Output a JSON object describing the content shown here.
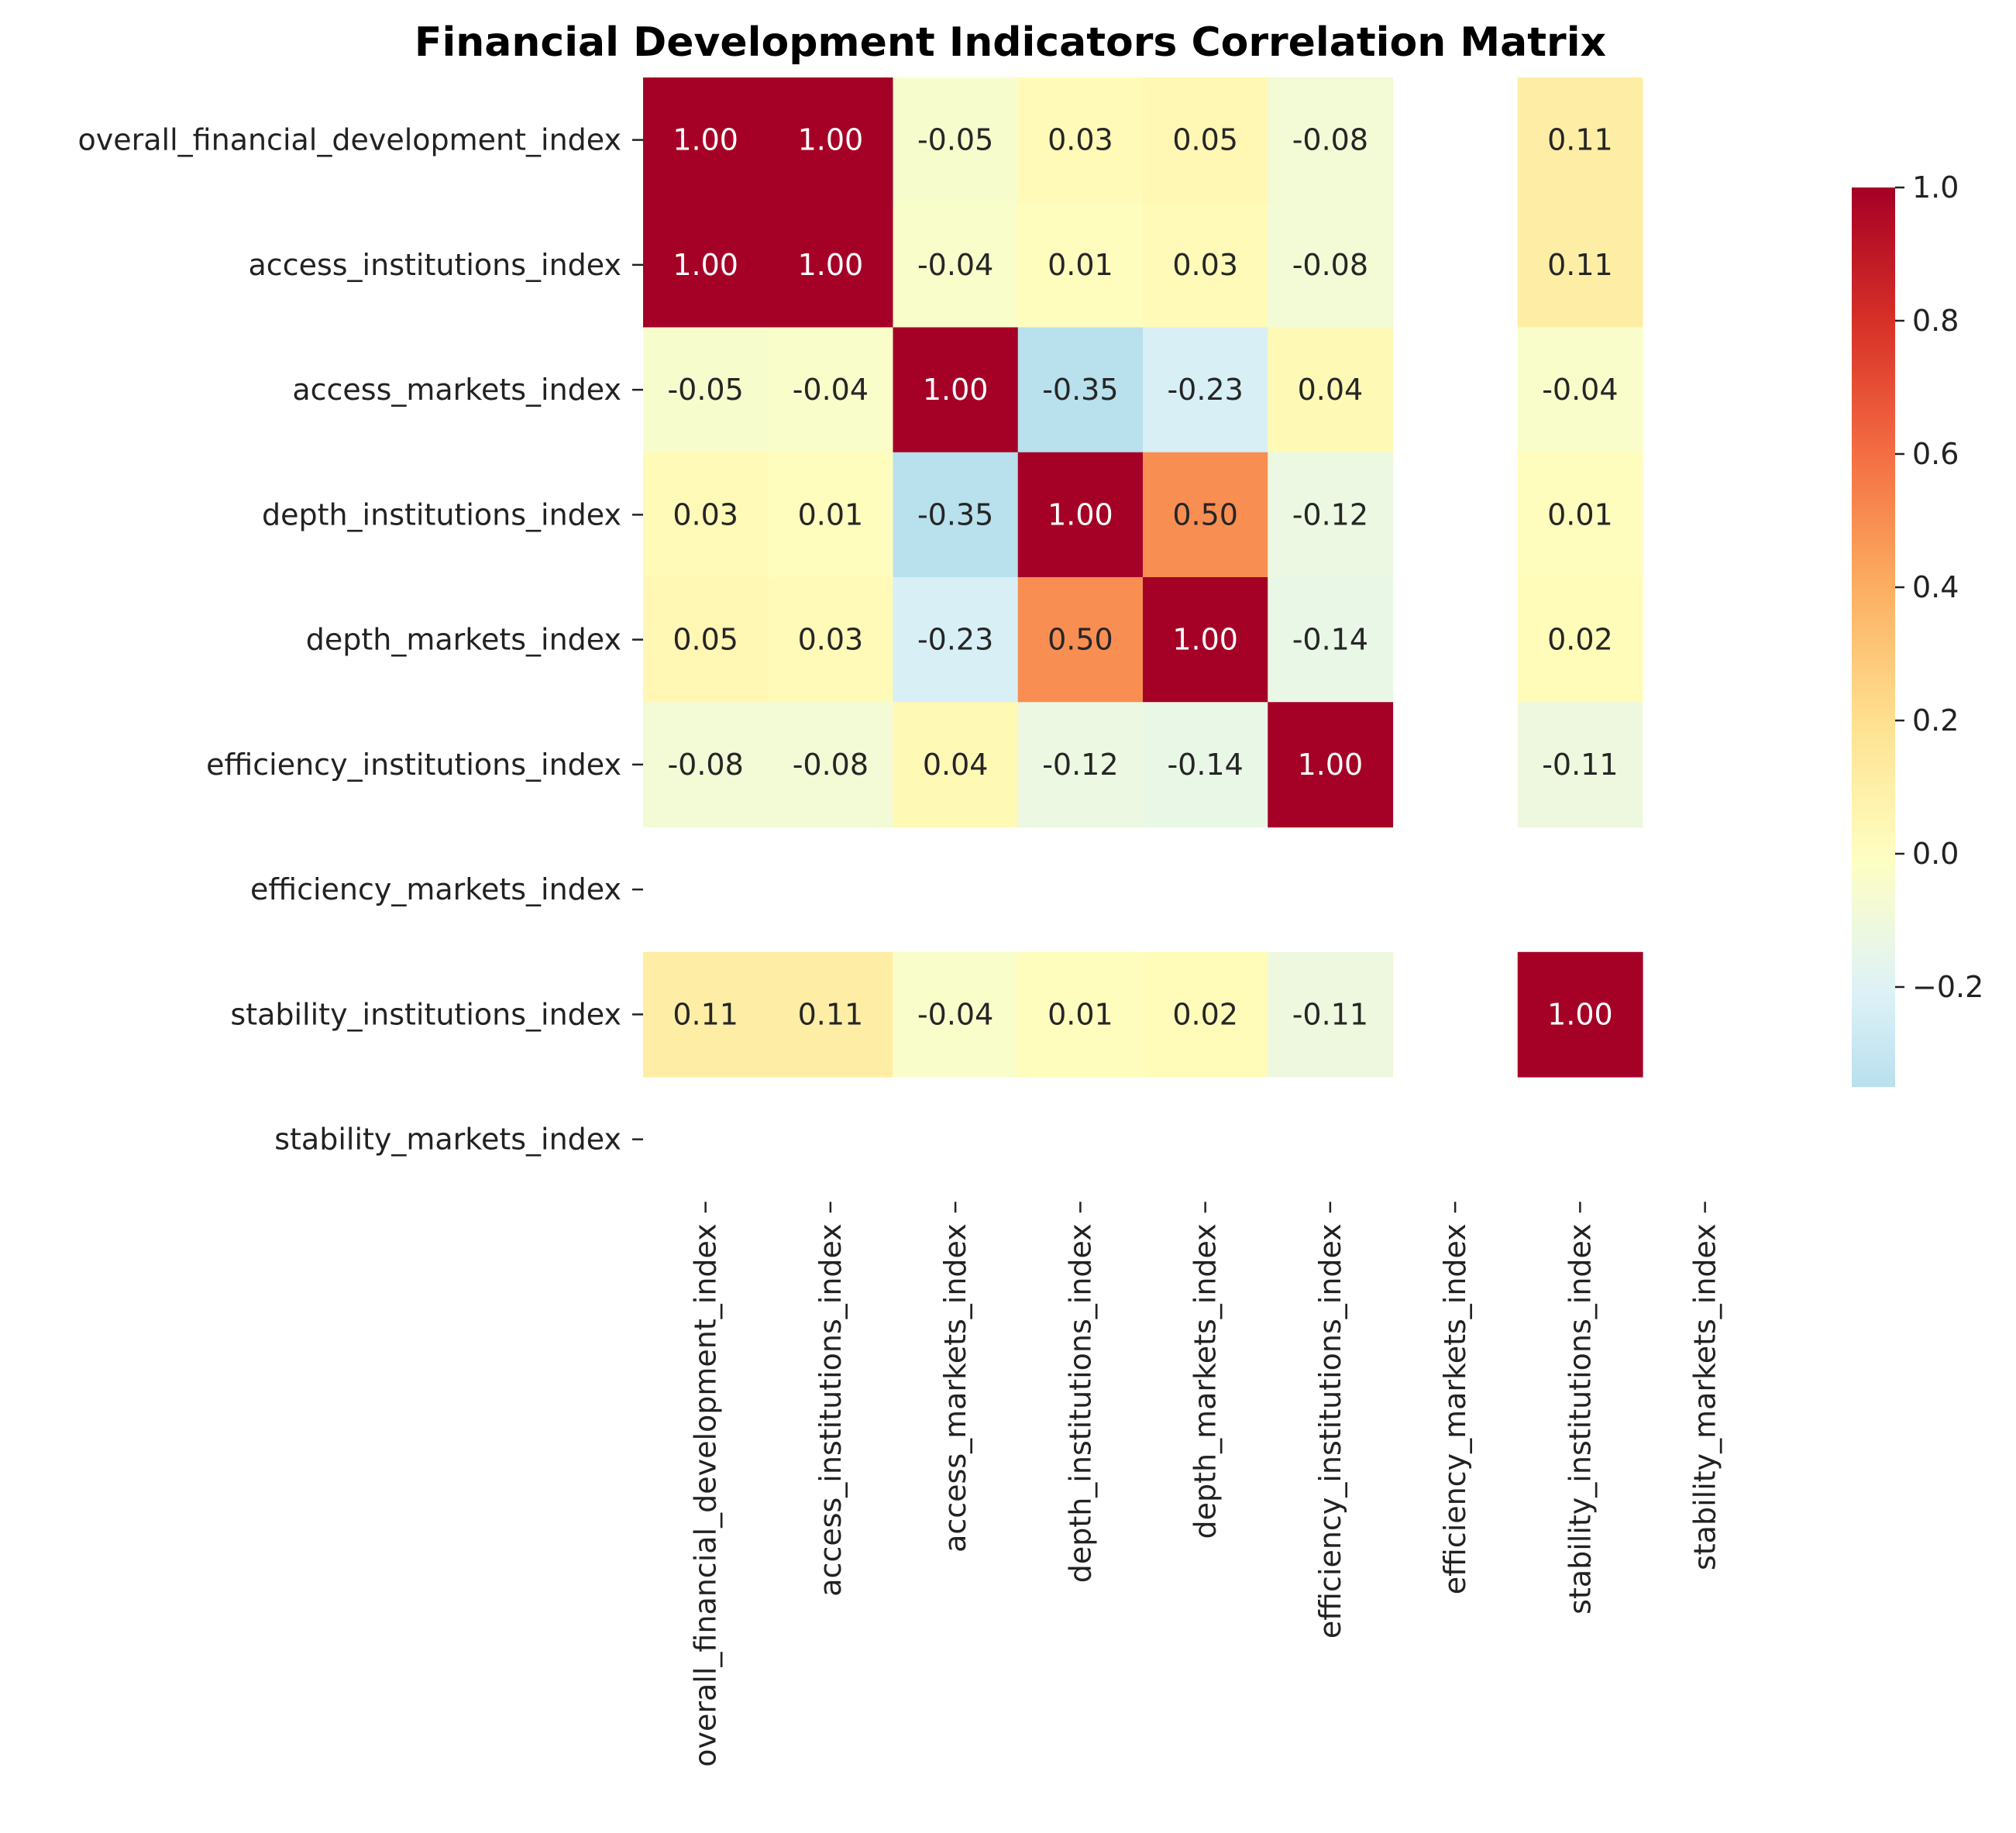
{
  "chart_data": {
    "type": "heatmap",
    "title": "Financial Development Indicators Correlation Matrix",
    "xlabel": "",
    "ylabel": "",
    "rows": [
      "overall_financial_development_index",
      "access_institutions_index",
      "access_markets_index",
      "depth_institutions_index",
      "depth_markets_index",
      "efficiency_institutions_index",
      "efficiency_markets_index",
      "stability_institutions_index",
      "stability_markets_index"
    ],
    "columns": [
      "overall_financial_development_index",
      "access_institutions_index",
      "access_markets_index",
      "depth_institutions_index",
      "depth_markets_index",
      "efficiency_institutions_index",
      "efficiency_markets_index",
      "stability_institutions_index",
      "stability_markets_index"
    ],
    "values": [
      [
        1.0,
        1.0,
        -0.05,
        0.03,
        0.05,
        -0.08,
        null,
        0.11,
        null
      ],
      [
        1.0,
        1.0,
        -0.04,
        0.01,
        0.03,
        -0.08,
        null,
        0.11,
        null
      ],
      [
        -0.05,
        -0.04,
        1.0,
        -0.35,
        -0.23,
        0.04,
        null,
        -0.04,
        null
      ],
      [
        0.03,
        0.01,
        -0.35,
        1.0,
        0.5,
        -0.12,
        null,
        0.01,
        null
      ],
      [
        0.05,
        0.03,
        -0.23,
        0.5,
        1.0,
        -0.14,
        null,
        0.02,
        null
      ],
      [
        -0.08,
        -0.08,
        0.04,
        -0.12,
        -0.14,
        1.0,
        null,
        -0.11,
        null
      ],
      [
        null,
        null,
        null,
        null,
        null,
        null,
        null,
        null,
        null
      ],
      [
        0.11,
        0.11,
        -0.04,
        0.01,
        0.02,
        -0.11,
        null,
        1.0,
        null
      ],
      [
        null,
        null,
        null,
        null,
        null,
        null,
        null,
        null,
        null
      ]
    ],
    "annotation_format": "0.00",
    "colormap": "RdYlBu_r",
    "color_range": [
      -0.35,
      1.0
    ],
    "center": 0,
    "colorbar": {
      "ticks": [
        1.0,
        0.8,
        0.6,
        0.4,
        0.2,
        0.0,
        -0.2
      ],
      "tick_labels": [
        "1.0",
        "0.8",
        "0.6",
        "0.4",
        "0.2",
        "0.0",
        "−0.2"
      ],
      "placement": "right"
    },
    "missing_cells": "blank"
  }
}
